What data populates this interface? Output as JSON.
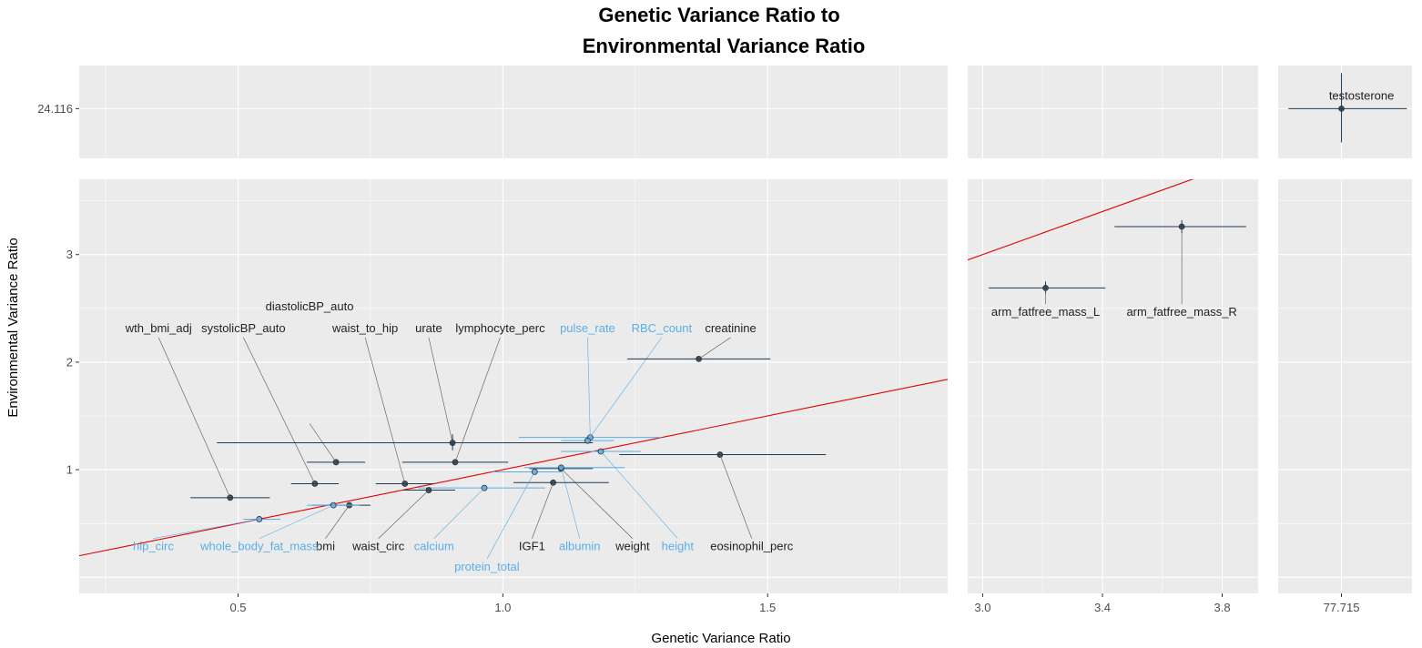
{
  "chart_data": {
    "type": "scatter",
    "title_line1": "Genetic Variance Ratio to",
    "title_line2": "Environmental Variance Ratio",
    "xlabel": "Genetic Variance Ratio",
    "ylabel": "Environmental Variance Ratio",
    "grid": true,
    "reference_line": {
      "description": "red line y = x",
      "color": "#e00000"
    },
    "colors": {
      "dark": "#1f3a52",
      "light": "#5aaee8",
      "panel": "#ebebeb",
      "grid": "#ffffff",
      "line": "#e00000"
    },
    "x_panels": [
      {
        "xlim": [
          0.2,
          1.84
        ],
        "ticks": [
          0.5,
          1.0,
          1.5
        ],
        "tick_labels": [
          "0.5",
          "1.0",
          "1.5"
        ]
      },
      {
        "xlim": [
          2.95,
          3.92
        ],
        "ticks": [
          3.0,
          3.4,
          3.8
        ],
        "tick_labels": [
          "3.0",
          "3.4",
          "3.8"
        ]
      },
      {
        "xlim": [
          77.1,
          78.4
        ],
        "ticks": [
          77.715
        ],
        "tick_labels": [
          "77.715"
        ]
      }
    ],
    "y_panels": [
      {
        "ylim": [
          23.65,
          24.52
        ],
        "ticks": [
          24.116
        ],
        "tick_labels": [
          "24.116"
        ]
      },
      {
        "ylim": [
          -0.15,
          3.7
        ],
        "ticks": [
          1,
          2,
          3
        ],
        "tick_labels": [
          "1",
          "2",
          "3"
        ]
      }
    ],
    "points": [
      {
        "name": "wth_bmi_adj",
        "x": 0.485,
        "y": 0.74,
        "xerr": [
          0.41,
          0.56
        ],
        "yerr": null,
        "group": "dark",
        "label_x": 0.35,
        "label_y": 2.28
      },
      {
        "name": "systolicBP_auto",
        "x": 0.645,
        "y": 0.87,
        "xerr": [
          0.6,
          0.69
        ],
        "yerr": null,
        "group": "dark",
        "label_x": 0.51,
        "label_y": 2.28
      },
      {
        "name": "diastolicBP_auto",
        "x": 0.685,
        "y": 1.07,
        "xerr": [
          0.63,
          0.74
        ],
        "yerr": null,
        "group": "dark",
        "label_x": 0.635,
        "label_y": 1.48,
        "label_yv": 2.48
      },
      {
        "name": "waist_to_hip",
        "x": 0.815,
        "y": 0.87,
        "xerr": [
          0.76,
          0.87
        ],
        "yerr": null,
        "group": "dark",
        "label_x": 0.74,
        "label_y": 2.28
      },
      {
        "name": "urate",
        "x": 0.905,
        "y": 1.25,
        "xerr": [
          0.46,
          1.17
        ],
        "yerr": [
          1.18,
          1.33
        ],
        "group": "dark",
        "label_x": 0.86,
        "label_y": 2.28
      },
      {
        "name": "lymphocyte_perc",
        "x": 0.91,
        "y": 1.07,
        "xerr": [
          0.81,
          1.01
        ],
        "yerr": null,
        "group": "dark",
        "label_x": 0.995,
        "label_y": 2.28
      },
      {
        "name": "pulse_rate",
        "x": 1.165,
        "y": 1.3,
        "xerr": [
          1.03,
          1.3
        ],
        "yerr": null,
        "group": "light",
        "label_x": 1.16,
        "label_y": 2.28
      },
      {
        "name": "RBC_count",
        "x": 1.16,
        "y": 1.27,
        "xerr": [
          1.11,
          1.21
        ],
        "yerr": null,
        "group": "light",
        "label_x": 1.3,
        "label_y": 2.28
      },
      {
        "name": "creatinine",
        "x": 1.37,
        "y": 2.03,
        "xerr": [
          1.235,
          1.505
        ],
        "yerr": null,
        "group": "dark",
        "label_x": 1.43,
        "label_y": 2.28
      },
      {
        "name": "height",
        "x": 1.185,
        "y": 1.17,
        "xerr": [
          1.11,
          1.26
        ],
        "yerr": null,
        "group": "light",
        "label_x": 1.33,
        "label_y": 0.25
      },
      {
        "name": "eosinophil_perc",
        "x": 1.41,
        "y": 1.14,
        "xerr": [
          1.22,
          1.61
        ],
        "yerr": null,
        "group": "dark",
        "label_x": 1.47,
        "label_y": 0.25
      },
      {
        "name": "weight",
        "x": 1.11,
        "y": 1.01,
        "xerr": [
          1.05,
          1.17
        ],
        "yerr": null,
        "group": "dark",
        "label_x": 1.245,
        "label_y": 0.25
      },
      {
        "name": "albumin",
        "x": 1.11,
        "y": 1.02,
        "xerr": [
          1.04,
          1.23
        ],
        "yerr": null,
        "group": "light",
        "label_x": 1.145,
        "label_y": 0.25
      },
      {
        "name": "IGF1",
        "x": 1.095,
        "y": 0.88,
        "xerr": [
          1.02,
          1.2
        ],
        "yerr": null,
        "group": "dark",
        "label_x": 1.055,
        "label_y": 0.25
      },
      {
        "name": "protein_total",
        "x": 1.06,
        "y": 0.98,
        "xerr": [
          0.98,
          1.11
        ],
        "yerr": null,
        "group": "light",
        "label_x": 0.97,
        "label_y": 0.06
      },
      {
        "name": "calcium",
        "x": 0.965,
        "y": 0.83,
        "xerr": [
          0.84,
          1.08
        ],
        "yerr": null,
        "group": "light",
        "label_x": 0.87,
        "label_y": 0.25
      },
      {
        "name": "waist_circ",
        "x": 0.86,
        "y": 0.81,
        "xerr": [
          0.81,
          0.91
        ],
        "yerr": null,
        "group": "dark",
        "label_x": 0.765,
        "label_y": 0.25
      },
      {
        "name": "bmi",
        "x": 0.71,
        "y": 0.67,
        "xerr": [
          0.64,
          0.75
        ],
        "yerr": null,
        "group": "dark",
        "label_x": 0.665,
        "label_y": 0.25
      },
      {
        "name": "whole_body_fat_mass",
        "x": 0.68,
        "y": 0.67,
        "xerr": [
          0.63,
          0.73
        ],
        "yerr": null,
        "group": "light",
        "label_x": 0.54,
        "label_y": 0.25
      },
      {
        "name": "hip_circ",
        "x": 0.54,
        "y": 0.54,
        "xerr": [
          0.51,
          0.58
        ],
        "yerr": null,
        "group": "light",
        "label_x": 0.34,
        "label_y": 0.25
      },
      {
        "name": "arm_fatfree_mass_L",
        "x": 3.21,
        "y": 2.69,
        "xerr": [
          3.02,
          3.41
        ],
        "yerr": [
          2.64,
          2.75
        ],
        "group": "dark",
        "label_x": 3.21,
        "label_y": 2.43
      },
      {
        "name": "arm_fatfree_mass_R",
        "x": 3.665,
        "y": 3.26,
        "xerr": [
          3.44,
          3.88
        ],
        "yerr": [
          3.2,
          3.32
        ],
        "group": "dark",
        "label_x": 3.665,
        "label_y": 2.43
      },
      {
        "name": "testosterone",
        "x": 77.715,
        "y": 24.116,
        "xerr": [
          77.2,
          78.35
        ],
        "yerr": [
          23.8,
          24.45
        ],
        "group": "dark",
        "label_x": 77.91,
        "label_y": 24.2
      }
    ]
  }
}
